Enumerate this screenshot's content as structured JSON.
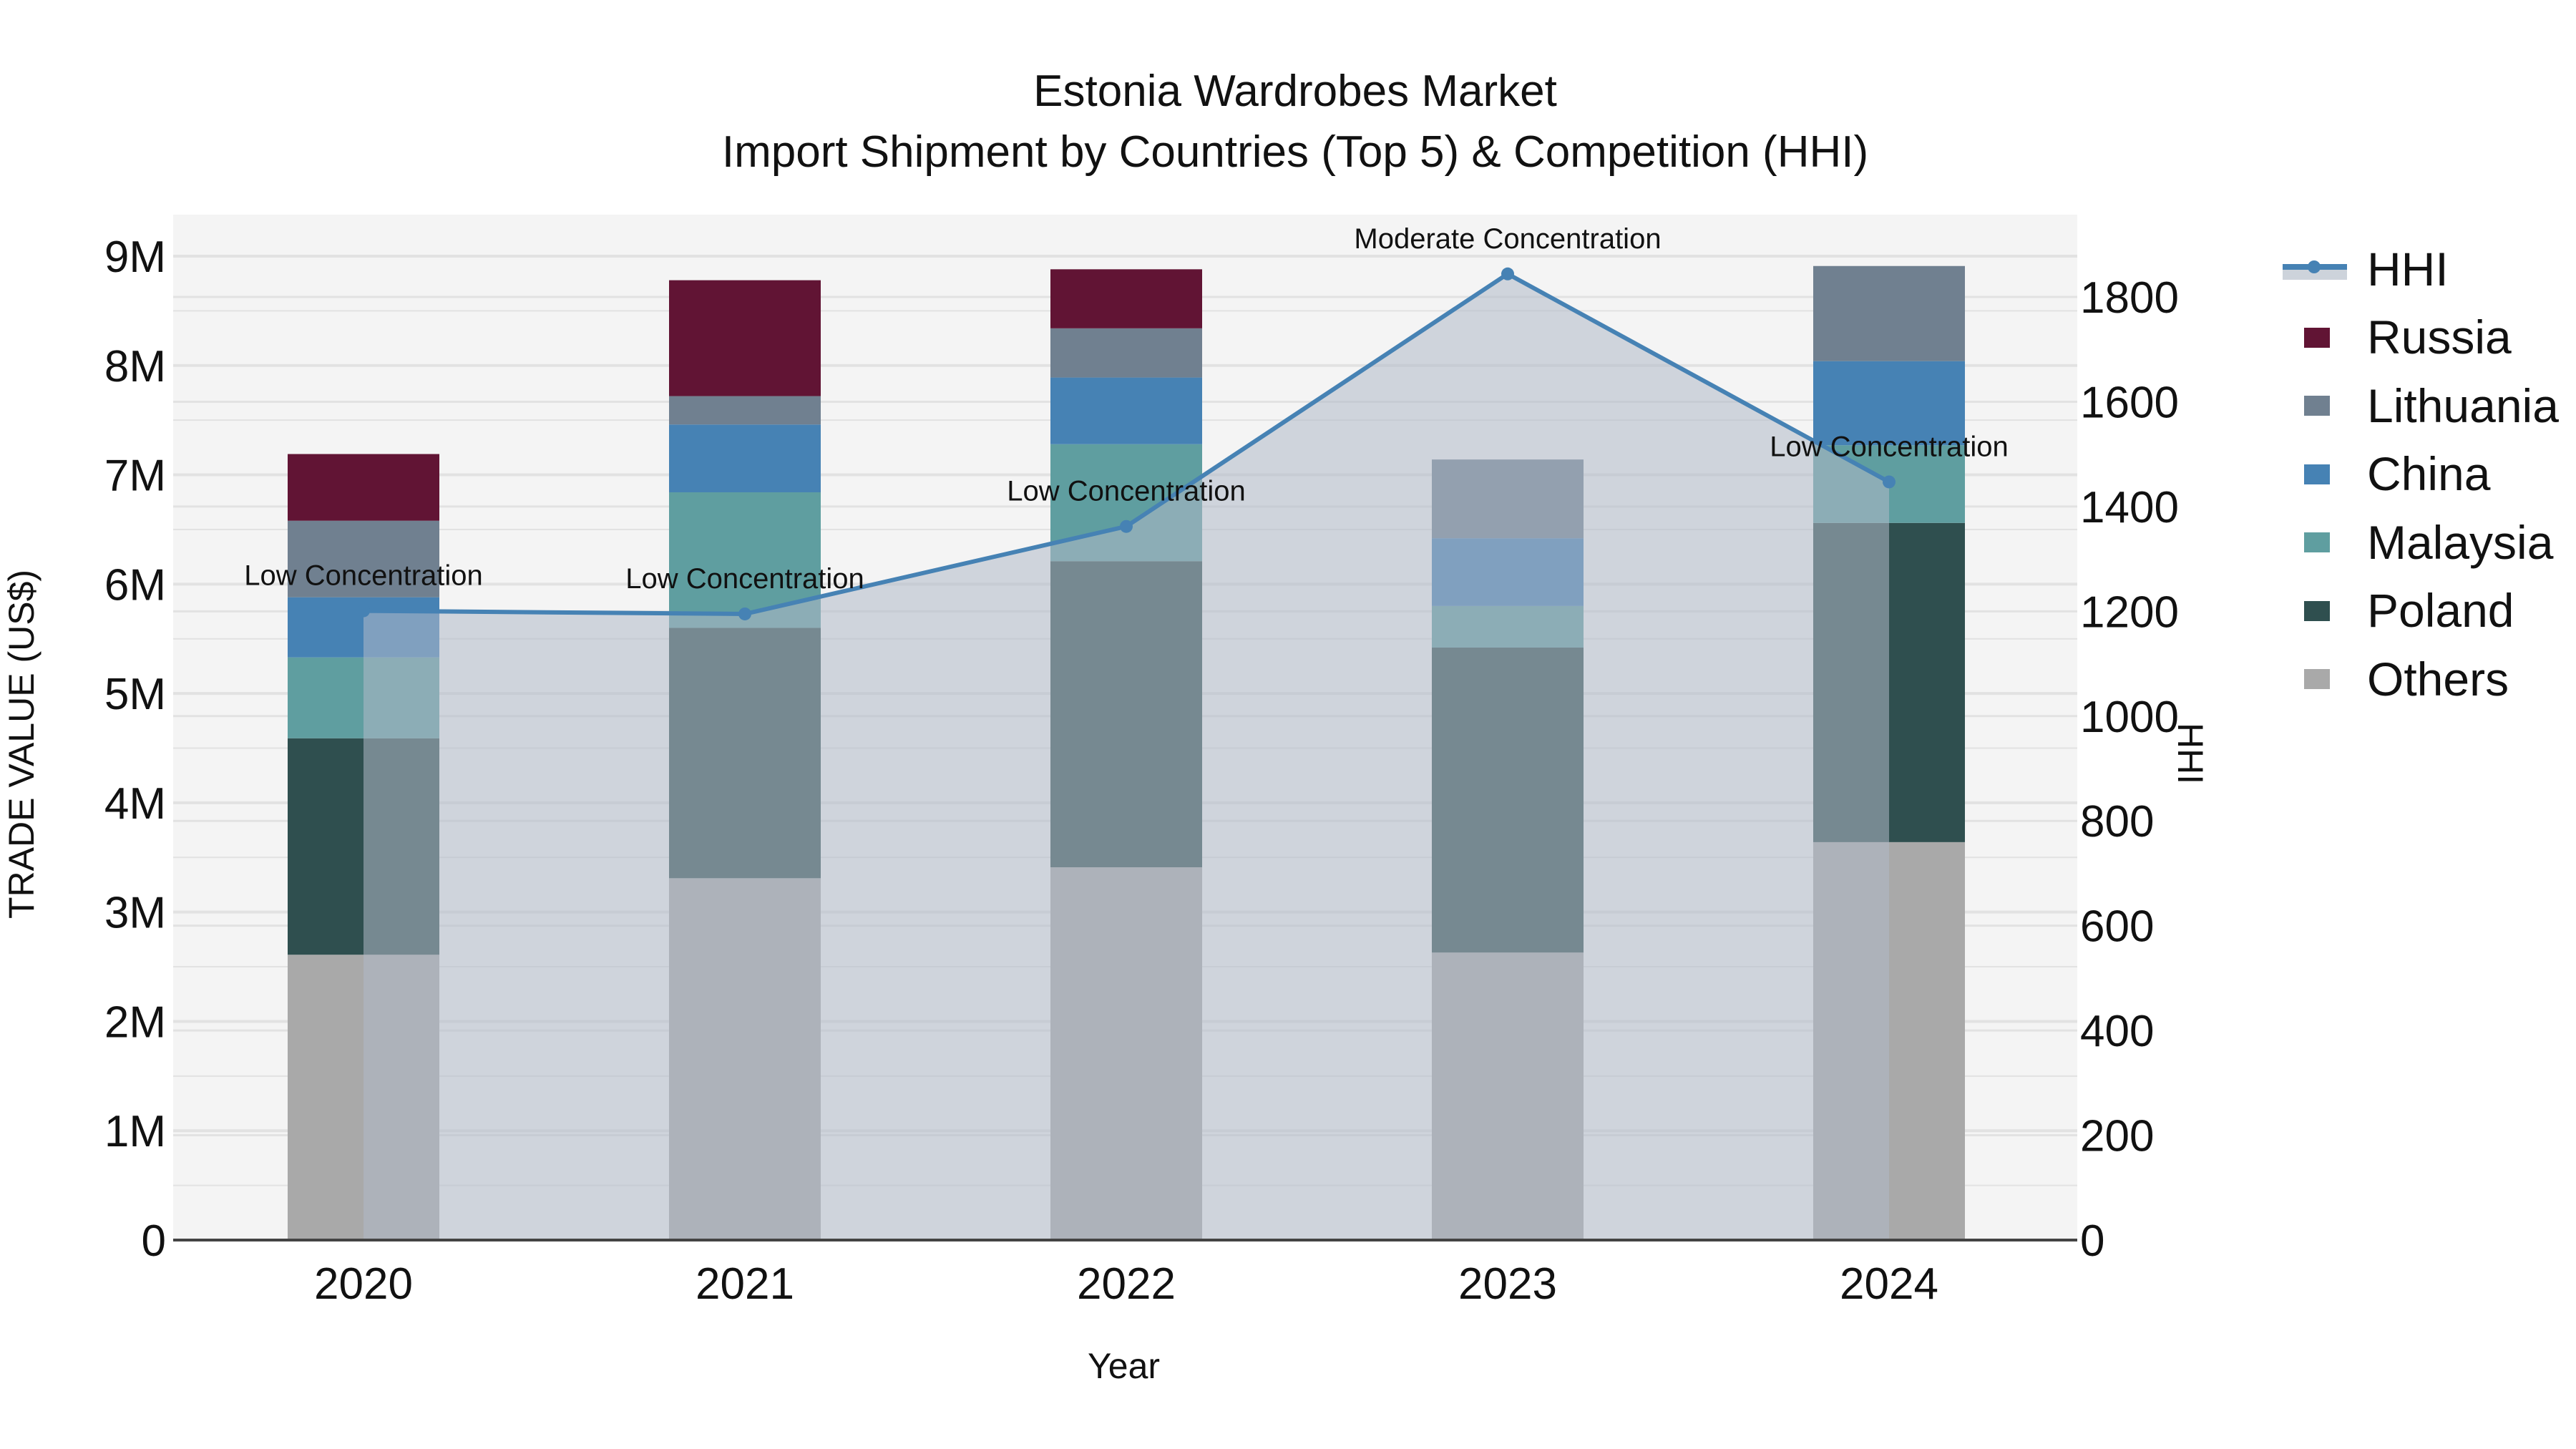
{
  "title": {
    "line1": "Estonia Wardrobes Market",
    "line2": "Import Shipment by Countries (Top 5) & Competition (HHI)"
  },
  "axes": {
    "x_title": "Year",
    "y_left_title": "TRADE VALUE (US$)",
    "y_right_title": "HHI",
    "y_left_ticks": [
      "0",
      "1M",
      "2M",
      "3M",
      "4M",
      "5M",
      "6M",
      "7M",
      "8M",
      "9M"
    ],
    "y_right_ticks": [
      "0",
      "200",
      "400",
      "600",
      "800",
      "1000",
      "1200",
      "1400",
      "1600",
      "1800"
    ],
    "x_ticks": [
      "2020",
      "2021",
      "2022",
      "2023",
      "2024"
    ]
  },
  "legend": {
    "items": [
      {
        "label": "HHI",
        "type": "line",
        "color": "#4682B4"
      },
      {
        "label": "Russia",
        "type": "bar",
        "color": "#611434"
      },
      {
        "label": "Lithuania",
        "type": "bar",
        "color": "#708090"
      },
      {
        "label": "China",
        "type": "bar",
        "color": "#4682B4"
      },
      {
        "label": "Malaysia",
        "type": "bar",
        "color": "#5F9EA0"
      },
      {
        "label": "Poland",
        "type": "bar",
        "color": "#2F4F4F"
      },
      {
        "label": "Others",
        "type": "bar",
        "color": "#A9A9A9"
      }
    ]
  },
  "annotations": [
    {
      "year": "2020",
      "text": "Low Concentration"
    },
    {
      "year": "2021",
      "text": "Low Concentration"
    },
    {
      "year": "2022",
      "text": "Low Concentration"
    },
    {
      "year": "2023",
      "text": "Moderate Concentration"
    },
    {
      "year": "2024",
      "text": "Low Concentration"
    }
  ],
  "chart_data": {
    "type": "bar",
    "stacked": true,
    "title": "Estonia Wardrobes Market — Import Shipment by Countries (Top 5) & Competition (HHI)",
    "xlabel": "Year",
    "ylabel": "TRADE VALUE (US$)",
    "y2label": "HHI",
    "categories": [
      "2020",
      "2021",
      "2022",
      "2023",
      "2024"
    ],
    "ylim": [
      0,
      9400000
    ],
    "y2lim": [
      0,
      1960
    ],
    "grid": true,
    "legend_position": "right",
    "series": [
      {
        "name": "Others",
        "color": "#A9A9A9",
        "values": [
          2610000,
          3310000,
          3410000,
          2630000,
          3640000
        ]
      },
      {
        "name": "Poland",
        "color": "#2F4F4F",
        "values": [
          1980000,
          2290000,
          2800000,
          2790000,
          2920000
        ]
      },
      {
        "name": "Malaysia",
        "color": "#5F9EA0",
        "values": [
          740000,
          1240000,
          1070000,
          380000,
          710000
        ]
      },
      {
        "name": "China",
        "color": "#4682B4",
        "values": [
          550000,
          620000,
          610000,
          620000,
          770000
        ]
      },
      {
        "name": "Lithuania",
        "color": "#708090",
        "values": [
          700000,
          260000,
          450000,
          720000,
          870000
        ]
      },
      {
        "name": "Russia",
        "color": "#611434",
        "values": [
          610000,
          1060000,
          540000,
          0,
          0
        ]
      }
    ],
    "line_series": [
      {
        "name": "HHI",
        "axis": "right",
        "color": "#4682B4",
        "fill": "tozeroy",
        "values": [
          1201,
          1195,
          1362,
          1844,
          1447
        ],
        "labels": [
          "Low Concentration",
          "Low Concentration",
          "Low Concentration",
          "Moderate Concentration",
          "Low Concentration"
        ]
      }
    ]
  }
}
